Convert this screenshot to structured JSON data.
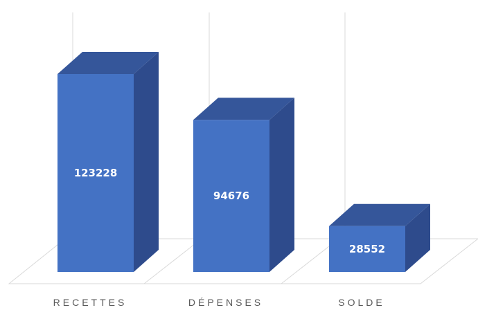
{
  "chart_data": {
    "type": "bar",
    "style": "3d-column",
    "categories": [
      "RECETTES",
      "DÉPENSES",
      "SOLDE"
    ],
    "series": [
      {
        "values": [
          123228,
          94676,
          28552
        ]
      }
    ],
    "ylim": [
      0,
      123228
    ],
    "grid": true,
    "legend": "none",
    "colors": {
      "front": "#4472C4",
      "side": "#2E4B8C",
      "top": "#35569A",
      "grid": "#D9D9D9"
    }
  }
}
